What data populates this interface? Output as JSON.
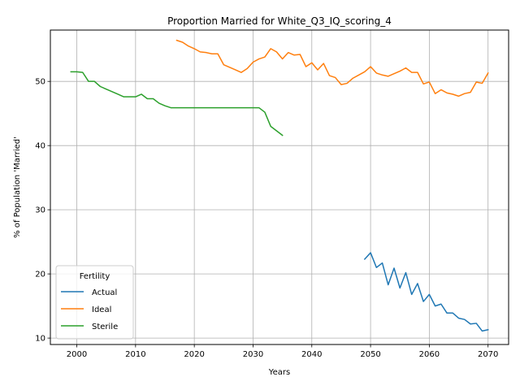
{
  "chart_data": {
    "type": "line",
    "title": "Proportion Married for White_Q3_IQ_scoring_4",
    "xlabel": "Years",
    "ylabel": "% of Population 'Married'",
    "xlim": [
      1995.5,
      2073.5
    ],
    "ylim": [
      9.0,
      58.0
    ],
    "xticks": [
      2000,
      2010,
      2020,
      2030,
      2040,
      2050,
      2060,
      2070
    ],
    "yticks": [
      10,
      20,
      30,
      40,
      50
    ],
    "grid": true,
    "legend": {
      "title": "Fertility",
      "placement": "lower-left"
    },
    "series": [
      {
        "name": "Actual",
        "color": "#1f77b4",
        "x": [
          2049,
          2050,
          2051,
          2052,
          2053,
          2054,
          2055,
          2056,
          2057,
          2058,
          2059,
          2060,
          2061,
          2062,
          2063,
          2064,
          2065,
          2066,
          2067,
          2068,
          2069,
          2070
        ],
        "y": [
          22.3,
          23.3,
          21.0,
          21.7,
          18.3,
          20.9,
          17.8,
          20.2,
          16.8,
          18.5,
          15.7,
          16.8,
          15.0,
          15.3,
          13.9,
          13.9,
          13.1,
          12.9,
          12.2,
          12.3,
          11.1,
          11.3
        ]
      },
      {
        "name": "Ideal",
        "color": "#ff7f0e",
        "x": [
          2017,
          2018,
          2019,
          2020,
          2021,
          2022,
          2023,
          2024,
          2025,
          2026,
          2027,
          2028,
          2029,
          2030,
          2031,
          2032,
          2033,
          2034,
          2035,
          2036,
          2037,
          2038,
          2039,
          2040,
          2041,
          2042,
          2043,
          2044,
          2045,
          2046,
          2047,
          2048,
          2049,
          2050,
          2051,
          2052,
          2053,
          2054,
          2055,
          2056,
          2057,
          2058,
          2059,
          2060,
          2061,
          2062,
          2063,
          2064,
          2065,
          2066,
          2067,
          2068,
          2069,
          2070
        ],
        "y": [
          56.4,
          56.1,
          55.5,
          55.1,
          54.6,
          54.5,
          54.3,
          54.3,
          52.6,
          52.2,
          51.8,
          51.4,
          52.0,
          53.0,
          53.5,
          53.8,
          55.1,
          54.6,
          53.5,
          54.5,
          54.1,
          54.2,
          52.3,
          52.9,
          51.8,
          52.8,
          50.9,
          50.6,
          49.5,
          49.7,
          50.5,
          51.0,
          51.5,
          52.3,
          51.3,
          51.0,
          50.8,
          51.2,
          51.6,
          52.1,
          51.4,
          51.4,
          49.6,
          49.9,
          48.1,
          48.7,
          48.2,
          48.0,
          47.7,
          48.1,
          48.3,
          49.9,
          49.7,
          51.3
        ]
      },
      {
        "name": "Sterile",
        "color": "#2ca02c",
        "x": [
          1999,
          2000,
          2001,
          2002,
          2003,
          2004,
          2005,
          2006,
          2007,
          2008,
          2009,
          2010,
          2011,
          2012,
          2013,
          2014,
          2015,
          2016,
          2017,
          2018,
          2019,
          2020,
          2021,
          2022,
          2023,
          2024,
          2025,
          2026,
          2027,
          2028,
          2029,
          2030,
          2031,
          2032,
          2033,
          2034,
          2035
        ],
        "y": [
          51.5,
          51.5,
          51.4,
          50.0,
          50.0,
          49.2,
          48.8,
          48.4,
          48.0,
          47.6,
          47.6,
          47.6,
          48.0,
          47.3,
          47.3,
          46.6,
          46.2,
          45.9,
          45.9,
          45.9,
          45.9,
          45.9,
          45.9,
          45.9,
          45.9,
          45.9,
          45.9,
          45.9,
          45.9,
          45.9,
          45.9,
          45.9,
          45.9,
          45.2,
          43.0,
          42.3,
          41.6
        ]
      }
    ]
  }
}
